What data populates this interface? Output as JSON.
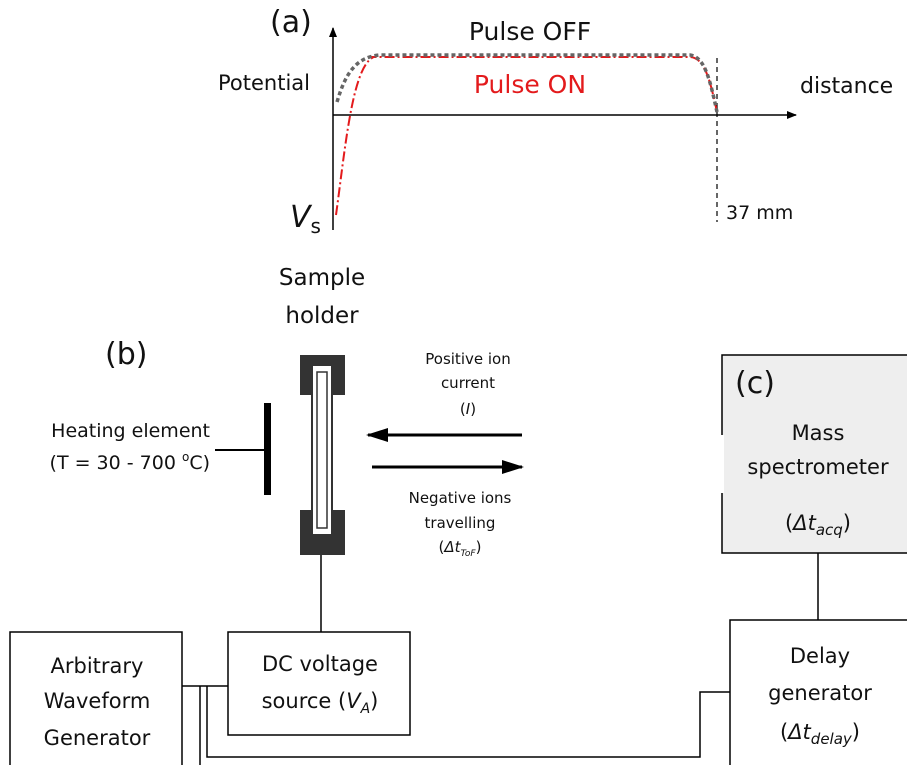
{
  "panel_a": {
    "label": "(a)",
    "pulse_off": "Pulse OFF",
    "pulse_on": "Pulse ON",
    "y_label": "Potential",
    "x_label": "distance",
    "vs": [
      "V",
      "s"
    ],
    "distance_mark": "37 mm"
  },
  "panel_b": {
    "label": "(b)",
    "sample_holder": [
      "Sample",
      "holder"
    ],
    "positive_ions": [
      "Positive ion",
      "current",
      [
        "(",
        "I",
        ")"
      ]
    ],
    "heating": [
      "Heating element",
      [
        "(T = 30 - 700 ",
        "o",
        "C)"
      ]
    ],
    "negative_ions": [
      "Negative ions",
      "travelling",
      [
        "(",
        "Δt",
        "ToF",
        ")"
      ]
    ],
    "awg": [
      "Arbitrary",
      "Waveform",
      "Generator"
    ],
    "dc_source": [
      "DC voltage",
      [
        "source (",
        "V",
        "A",
        ")"
      ]
    ]
  },
  "panel_c": {
    "label": "(c)",
    "mass_spec": [
      "Mass",
      "spectrometer",
      [
        "(",
        "Δt",
        "acq",
        ")"
      ]
    ],
    "delay": [
      "Delay",
      "generator",
      [
        "(",
        "Δt",
        "delay",
        ")"
      ]
    ]
  }
}
